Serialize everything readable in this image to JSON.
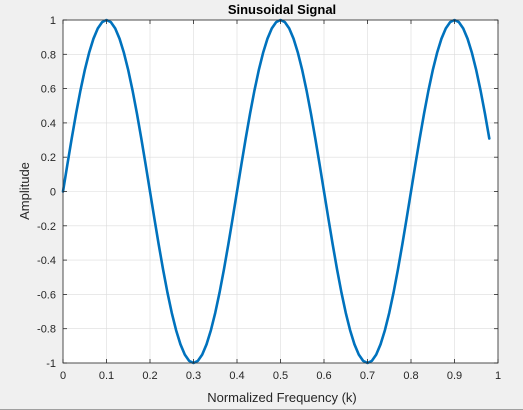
{
  "chart_data": {
    "type": "line",
    "title": "Sinusoidal Signal",
    "xlabel": "Normalized Frequency (k)",
    "ylabel": "Amplitude",
    "xlim": [
      0,
      1
    ],
    "ylim": [
      -1,
      1
    ],
    "grid": true,
    "x_ticks": [
      "0",
      "0.1",
      "0.2",
      "0.3",
      "0.4",
      "0.5",
      "0.6",
      "0.7",
      "0.8",
      "0.9",
      "1"
    ],
    "y_ticks": [
      "-1",
      "-0.8",
      "-0.6",
      "-0.4",
      "-0.2",
      "0",
      "0.2",
      "0.4",
      "0.6",
      "0.8",
      "1"
    ],
    "series": [
      {
        "color": "#0072bd",
        "x": [
          0,
          0.01,
          0.02,
          0.03,
          0.04,
          0.05,
          0.06,
          0.07,
          0.08,
          0.09,
          0.1,
          0.11,
          0.12,
          0.13,
          0.14,
          0.15,
          0.16,
          0.17,
          0.18,
          0.19,
          0.2,
          0.21,
          0.22,
          0.23,
          0.24,
          0.25,
          0.26,
          0.27,
          0.28,
          0.29,
          0.3,
          0.31,
          0.32,
          0.33,
          0.34,
          0.35,
          0.36,
          0.37,
          0.38,
          0.39,
          0.4,
          0.41,
          0.42,
          0.43,
          0.44,
          0.45,
          0.46,
          0.47,
          0.48,
          0.49,
          0.5,
          0.51,
          0.52,
          0.53,
          0.54,
          0.55,
          0.56,
          0.57,
          0.58,
          0.59,
          0.6,
          0.61,
          0.62,
          0.63,
          0.64,
          0.65,
          0.66,
          0.67,
          0.68,
          0.69,
          0.7,
          0.71,
          0.72,
          0.73,
          0.74,
          0.75,
          0.76,
          0.77,
          0.78,
          0.79,
          0.8,
          0.81,
          0.82,
          0.83,
          0.84,
          0.85,
          0.86,
          0.87,
          0.88,
          0.89,
          0.9,
          0.91,
          0.92,
          0.93,
          0.94,
          0.95,
          0.96,
          0.97,
          0.98
        ],
        "y": [
          0,
          0.1564,
          0.309,
          0.454,
          0.5878,
          0.7071,
          0.809,
          0.891,
          0.9511,
          0.9877,
          1,
          0.9877,
          0.9511,
          0.891,
          0.809,
          0.7071,
          0.5878,
          0.454,
          0.309,
          0.1564,
          0,
          -0.1564,
          -0.309,
          -0.454,
          -0.5878,
          -0.7071,
          -0.809,
          -0.891,
          -0.9511,
          -0.9877,
          -1,
          -0.9877,
          -0.9511,
          -0.891,
          -0.809,
          -0.7071,
          -0.5878,
          -0.454,
          -0.309,
          -0.1564,
          0,
          0.1564,
          0.309,
          0.454,
          0.5878,
          0.7071,
          0.809,
          0.891,
          0.9511,
          0.9877,
          1,
          0.9877,
          0.9511,
          0.891,
          0.809,
          0.7071,
          0.5878,
          0.454,
          0.309,
          0.1564,
          0,
          -0.1564,
          -0.309,
          -0.454,
          -0.5878,
          -0.7071,
          -0.809,
          -0.891,
          -0.9511,
          -0.9877,
          -1,
          -0.9877,
          -0.9511,
          -0.891,
          -0.809,
          -0.7071,
          -0.5878,
          -0.454,
          -0.309,
          -0.1564,
          0,
          0.1564,
          0.309,
          0.454,
          0.5878,
          0.7071,
          0.809,
          0.891,
          0.9511,
          0.9877,
          1,
          0.9877,
          0.9511,
          0.891,
          0.809,
          0.7071,
          0.5878,
          0.454,
          0.309
        ]
      }
    ]
  }
}
